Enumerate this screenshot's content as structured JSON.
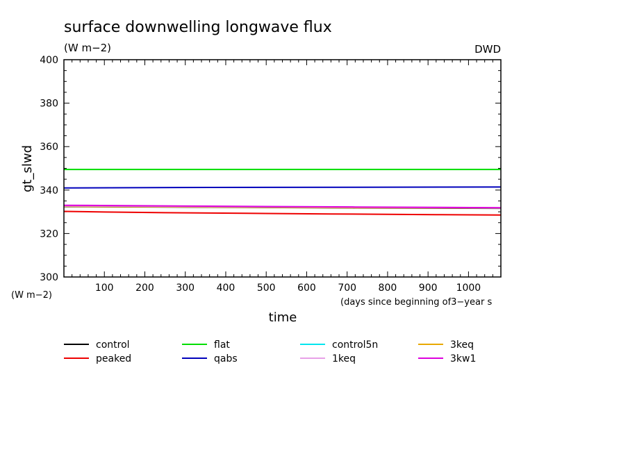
{
  "chart_data": {
    "type": "line",
    "title": "surface downwelling longwave flux",
    "units": "(W m−2)",
    "units_left": "(W m−2)",
    "source": "DWD",
    "ylabel": "gt_slwd",
    "xlabel": "time",
    "xlabel_units": "(days since beginning of3−year s",
    "xlim": [
      0,
      1080
    ],
    "ylim": [
      300,
      400
    ],
    "xticks": [
      100,
      200,
      300,
      400,
      500,
      600,
      700,
      800,
      900,
      1000
    ],
    "yticks": [
      300,
      320,
      340,
      360,
      380,
      400
    ],
    "grid": false,
    "legend_position": "bottom",
    "series": [
      {
        "name": "control",
        "color": "#000000",
        "x": [
          0,
          360,
          720,
          1080
        ],
        "y": [
          332.4,
          332.1,
          331.8,
          331.6
        ]
      },
      {
        "name": "flat",
        "color": "#00dd00",
        "x": [
          0,
          360,
          720,
          1080
        ],
        "y": [
          349.5,
          349.5,
          349.5,
          349.5
        ]
      },
      {
        "name": "control5n",
        "color": "#00e5ee",
        "x": [
          0,
          360,
          720,
          1080
        ],
        "y": [
          332.6,
          332.3,
          332.0,
          331.7
        ]
      },
      {
        "name": "3keq",
        "color": "#e8a800",
        "x": [
          0,
          360,
          720,
          1080
        ],
        "y": [
          332.5,
          332.2,
          331.9,
          331.7
        ]
      },
      {
        "name": "peaked",
        "color": "#ee0000",
        "x": [
          0,
          100,
          250,
          450,
          660,
          920,
          1080
        ],
        "y": [
          330.2,
          329.9,
          329.6,
          329.3,
          329.0,
          328.7,
          328.5
        ]
      },
      {
        "name": "qabs",
        "color": "#0000bb",
        "x": [
          0,
          360,
          720,
          1080
        ],
        "y": [
          341.0,
          341.2,
          341.3,
          341.4
        ]
      },
      {
        "name": "1keq",
        "color": "#e8a0e8",
        "x": [
          0,
          360,
          720,
          1080
        ],
        "y": [
          332.7,
          332.4,
          332.1,
          331.8
        ]
      },
      {
        "name": "3kw1",
        "color": "#dd00dd",
        "x": [
          0,
          360,
          720,
          1080
        ],
        "y": [
          333.0,
          332.6,
          332.2,
          331.9
        ]
      }
    ]
  }
}
